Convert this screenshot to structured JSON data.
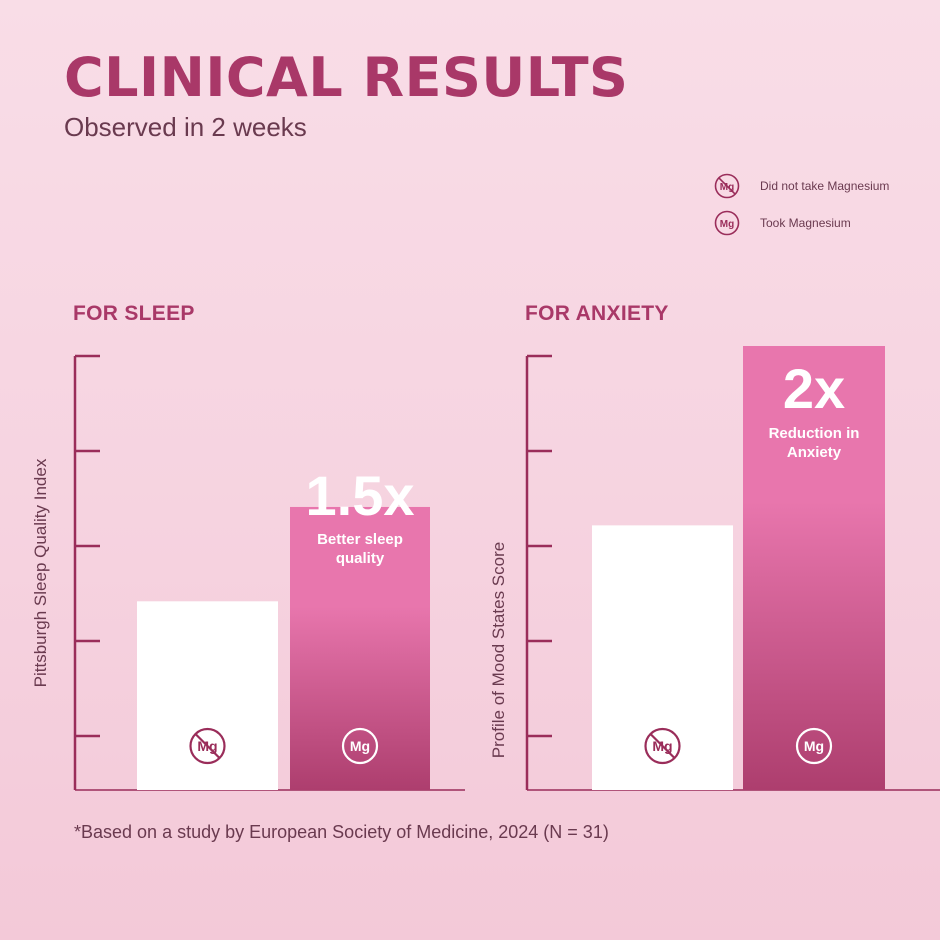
{
  "title": "CLINICAL RESULTS",
  "subtitle": "Observed in 2 weeks",
  "colors": {
    "heading": "#a93868",
    "subtitle": "#6a3a4f",
    "axis": "#9a2d5a",
    "bar_control": "#ffffff",
    "bar_top": "#e876ad",
    "bar_bottom": "#ad3e6e",
    "icon_control": "#9a2d5a",
    "icon_treatment": "#ffffff"
  },
  "legend": [
    {
      "icon": "mg-crossed-icon",
      "icon_text": "Mg",
      "label": "Did not take Magnesium"
    },
    {
      "icon": "mg-icon",
      "icon_text": "Mg",
      "label": "Took Magnesium"
    }
  ],
  "chart_data": [
    {
      "type": "bar",
      "title": "FOR SLEEP",
      "ylabel": "Pittsburgh Sleep Quality Index",
      "categories": [
        "Did not take Magnesium",
        "Took Magnesium"
      ],
      "values": [
        1.0,
        1.5
      ],
      "ylim": [
        0,
        2.3
      ],
      "y_ticks": 5,
      "grid": false,
      "annotation": {
        "big": "1.5x",
        "small_lines": [
          "Better sleep",
          "quality"
        ]
      }
    },
    {
      "type": "bar",
      "title": "FOR ANXIETY",
      "ylabel": "Profile of Mood States Score",
      "categories": [
        "Did not take Magnesium",
        "Took Magnesium"
      ],
      "values": [
        1.0,
        1.69
      ],
      "ylim": [
        0,
        1.64
      ],
      "y_ticks": 5,
      "grid": false,
      "annotation": {
        "big": "2x",
        "small_lines": [
          "Reduction in",
          "Anxiety"
        ]
      }
    }
  ],
  "footnote": "*Based on a study by European Society of Medicine, 2024 (N = 31)"
}
